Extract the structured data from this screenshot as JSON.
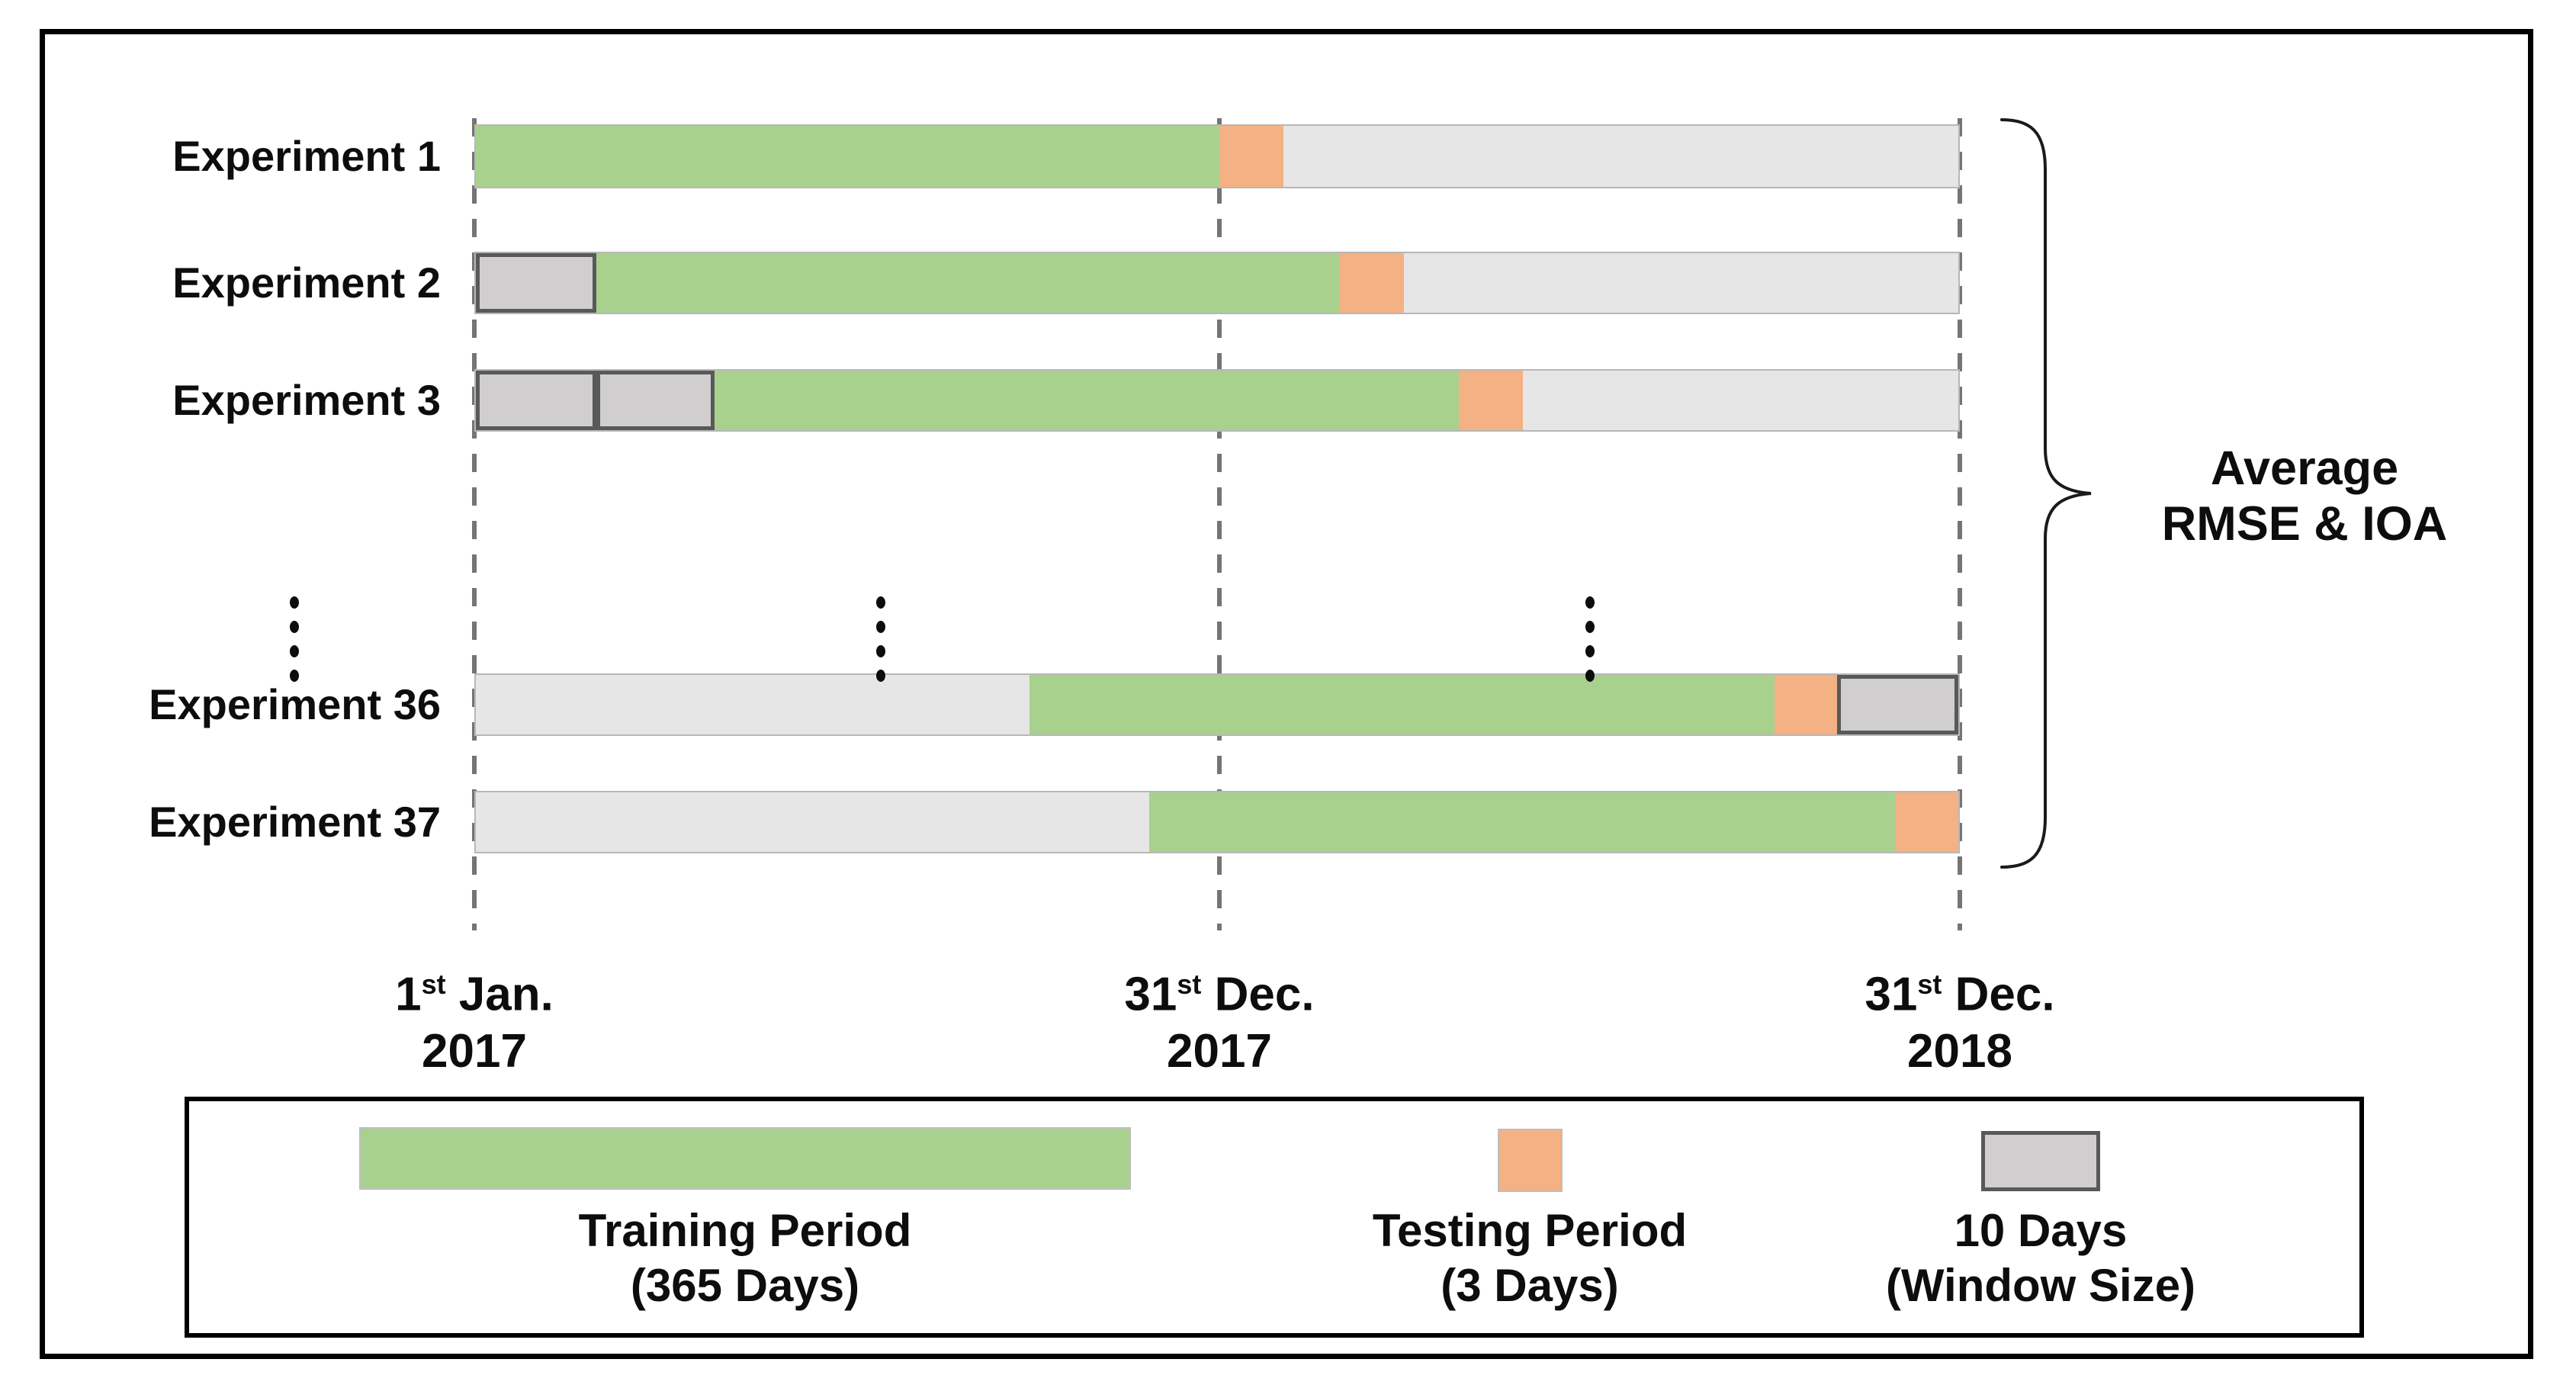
{
  "colors": {
    "training_green": "#a9d18e",
    "testing_orange": "#f4b183",
    "remainder_gray": "#e7e6e6",
    "window_fill": "#d0cece",
    "window_border": "#595959",
    "dashed_line": "#757575"
  },
  "rows": [
    {
      "label": "Experiment 1",
      "segments": [
        {
          "type": "training",
          "start": 0,
          "end": 0.5015
        },
        {
          "type": "testing",
          "start": 0.5015,
          "end": 0.5447
        },
        {
          "type": "remainder",
          "start": 0.5447,
          "end": 1
        }
      ]
    },
    {
      "label": "Experiment 2",
      "segments": [
        {
          "type": "window",
          "start": 0,
          "end": 0.0811
        },
        {
          "type": "training",
          "start": 0.0811,
          "end": 0.5826
        },
        {
          "type": "testing",
          "start": 0.5826,
          "end": 0.6258
        },
        {
          "type": "remainder",
          "start": 0.6258,
          "end": 1
        }
      ]
    },
    {
      "label": "Experiment 3",
      "segments": [
        {
          "type": "window",
          "start": 0,
          "end": 0.0811
        },
        {
          "type": "window",
          "start": 0.0811,
          "end": 0.1612
        },
        {
          "type": "training",
          "start": 0.1612,
          "end": 0.6632
        },
        {
          "type": "testing",
          "start": 0.6632,
          "end": 0.7064
        },
        {
          "type": "remainder",
          "start": 0.7064,
          "end": 1
        }
      ]
    },
    {
      "label": "Experiment 36",
      "segments": [
        {
          "type": "remainder",
          "start": 0,
          "end": 0.3737
        },
        {
          "type": "training",
          "start": 0.3737,
          "end": 0.8758
        },
        {
          "type": "testing",
          "start": 0.8758,
          "end": 0.9184
        },
        {
          "type": "window",
          "start": 0.9184,
          "end": 1
        }
      ]
    },
    {
      "label": "Experiment 37",
      "segments": [
        {
          "type": "remainder",
          "start": 0,
          "end": 0.4543
        },
        {
          "type": "training",
          "start": 0.4543,
          "end": 0.9574
        },
        {
          "type": "testing",
          "start": 0.9574,
          "end": 1
        }
      ]
    }
  ],
  "timeline": {
    "ticks": [
      {
        "day": "1",
        "ordinal": "st",
        "month": " Jan.",
        "year": "2017"
      },
      {
        "day": "31",
        "ordinal": "st",
        "month": " Dec.",
        "year": "2017"
      },
      {
        "day": "31",
        "ordinal": "st",
        "month": " Dec.",
        "year": "2018"
      }
    ]
  },
  "brace_label": {
    "line1": "Average",
    "line2": "RMSE & IOA"
  },
  "legend": {
    "items": [
      {
        "swatch": "training",
        "line1": "Training Period",
        "line2": "(365 Days)"
      },
      {
        "swatch": "testing",
        "line1": "Testing Period",
        "line2": "(3 Days)"
      },
      {
        "swatch": "window",
        "line1": "10 Days",
        "line2": "(Window Size)"
      }
    ]
  }
}
